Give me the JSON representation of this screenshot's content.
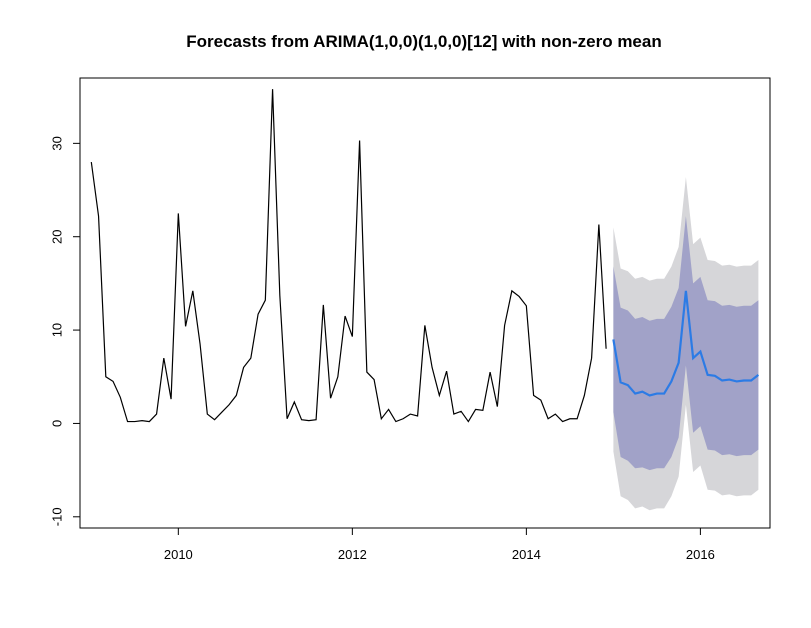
{
  "chart_data": {
    "type": "line",
    "title": "Forecasts from ARIMA(1,0,0)(1,0,0)[12] with non-zero mean",
    "xlabel": "",
    "ylabel": "",
    "xlim": [
      2008.87,
      2016.8
    ],
    "ylim": [
      -11.2,
      37
    ],
    "x_ticks": [
      2010,
      2012,
      2014,
      2016
    ],
    "y_ticks": [
      -10,
      0,
      10,
      20,
      30
    ],
    "x_tick_labels": [
      "2010",
      "2012",
      "2014",
      "2016"
    ],
    "y_tick_labels": [
      "-10",
      "0",
      "10",
      "20",
      "30"
    ],
    "grid": false,
    "legend": "none",
    "history": {
      "start": 2009.0,
      "step": 0.08333,
      "values": [
        28,
        22.2,
        5,
        4.5,
        2.8,
        0.2,
        0.2,
        0.3,
        0.2,
        1,
        7,
        2.6,
        22.5,
        10.4,
        14.2,
        8.5,
        1,
        0.4,
        1.2,
        2,
        3,
        6,
        7,
        11.7,
        13.2,
        35.8,
        13.7,
        0.5,
        2.3,
        0.4,
        0.3,
        0.4,
        12.7,
        2.7,
        5,
        11.5,
        9.3,
        30.3,
        5.5,
        4.7,
        0.5,
        1.5,
        0.2,
        0.5,
        1,
        0.8,
        10.5,
        6,
        3,
        5.6,
        1,
        1.3,
        0.2,
        1.5,
        1.4,
        5.5,
        1.8,
        10.5,
        14.2,
        13.6,
        12.6,
        3,
        2.5,
        0.5,
        1,
        0.2,
        0.5,
        0.5,
        3,
        7,
        21.3,
        8
      ]
    },
    "forecast": {
      "start": 2015.0,
      "step": 0.08333,
      "mean": [
        9,
        4.4,
        4.1,
        3.2,
        3.4,
        3.0,
        3.2,
        3.2,
        4.5,
        6.5,
        14.2,
        7,
        7.7,
        5.2,
        5.1,
        4.6,
        4.7,
        4.5,
        4.6,
        4.6,
        5.2
      ],
      "lo80": [
        1.2,
        -3.6,
        -4.0,
        -4.8,
        -4.7,
        -5.0,
        -4.8,
        -4.8,
        -3.6,
        -1.5,
        6.2,
        -1,
        -0.3,
        -2.8,
        -2.9,
        -3.4,
        -3.3,
        -3.5,
        -3.4,
        -3.4,
        -2.8
      ],
      "hi80": [
        16.8,
        12.4,
        12.1,
        11.2,
        11.4,
        11.0,
        11.2,
        11.2,
        12.5,
        14.5,
        22.2,
        15.0,
        15.7,
        13.2,
        13.1,
        12.6,
        12.7,
        12.5,
        12.6,
        12.6,
        13.2
      ],
      "lo95": [
        -3,
        -7.8,
        -8.2,
        -9.1,
        -8.9,
        -9.3,
        -9.1,
        -9.1,
        -7.8,
        -5.7,
        2,
        -5.2,
        -4.5,
        -7.1,
        -7.2,
        -7.7,
        -7.6,
        -7.8,
        -7.7,
        -7.7,
        -7.1
      ],
      "hi95": [
        21,
        16.6,
        16.3,
        15.5,
        15.7,
        15.3,
        15.5,
        15.5,
        16.8,
        18.9,
        26.4,
        19.2,
        19.9,
        17.5,
        17.4,
        16.9,
        17.0,
        16.8,
        16.9,
        16.9,
        17.5
      ]
    },
    "colors": {
      "history_line": "#000000",
      "forecast_line": "#2c7be5",
      "band80": "#a1a2c8",
      "band95": "#d6d6d9",
      "frame": "#000000"
    }
  }
}
